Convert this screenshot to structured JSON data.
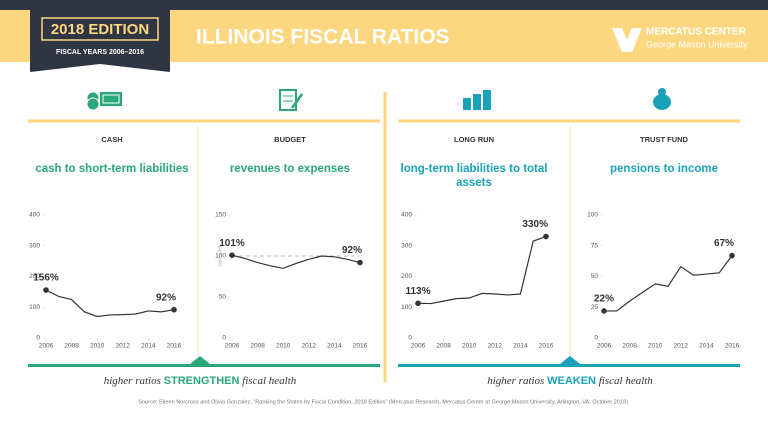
{
  "header": {
    "edition": "2018 EDITION",
    "years": "FISCAL YEARS 2006–2016",
    "title": "ILLINOIS FISCAL RATIOS",
    "logo_name": "MERCATUS CENTER",
    "logo_sub": "George Mason University"
  },
  "chart_data": [
    {
      "type": "line",
      "label": "CASH",
      "title": "cash to short-term liabilities",
      "title_color": "#2aa87a",
      "color": "#333333",
      "x": [
        2006,
        2007,
        2008,
        2009,
        2010,
        2011,
        2012,
        2013,
        2014,
        2015,
        2016
      ],
      "values": [
        156,
        135,
        125,
        85,
        70,
        75,
        76,
        78,
        88,
        85,
        92
      ],
      "value_labels": [
        "156%",
        null,
        null,
        null,
        null,
        null,
        null,
        null,
        null,
        null,
        "92%"
      ],
      "xlim": [
        2006,
        2016
      ],
      "xticks": [
        2006,
        2008,
        2010,
        2012,
        2014,
        2016
      ],
      "ylim": [
        0,
        400
      ],
      "yticks": [
        0,
        100,
        200,
        300,
        400
      ]
    },
    {
      "type": "line",
      "label": "BUDGET",
      "title": "revenues to expenses",
      "title_color": "#2aa87a",
      "color": "#333333",
      "x": [
        2006,
        2007,
        2008,
        2009,
        2010,
        2011,
        2012,
        2013,
        2014,
        2015,
        2016
      ],
      "values": [
        101,
        97,
        92,
        88,
        85,
        91,
        96,
        100,
        99,
        96,
        92
      ],
      "value_labels": [
        "101%",
        null,
        null,
        null,
        null,
        null,
        null,
        null,
        null,
        null,
        "92%"
      ],
      "reference": {
        "value": 100,
        "label": "balanced"
      },
      "xlim": [
        2006,
        2016
      ],
      "xticks": [
        2006,
        2008,
        2010,
        2012,
        2014,
        2016
      ],
      "ylim": [
        0,
        150
      ],
      "yticks": [
        0,
        50,
        100,
        150
      ]
    },
    {
      "type": "line",
      "label": "LONG RUN",
      "title": "long-term liabilities to total assets",
      "title_color": "#1aa3b8",
      "color": "#333333",
      "x": [
        2006,
        2007,
        2008,
        2009,
        2010,
        2011,
        2012,
        2013,
        2014,
        2015,
        2016
      ],
      "values": [
        113,
        112,
        120,
        128,
        130,
        145,
        143,
        140,
        143,
        315,
        330
      ],
      "value_labels": [
        "113%",
        null,
        null,
        null,
        null,
        null,
        null,
        null,
        null,
        null,
        "330%"
      ],
      "xlim": [
        2006,
        2016
      ],
      "xticks": [
        2006,
        2008,
        2010,
        2012,
        2014,
        2016
      ],
      "ylim": [
        0,
        400
      ],
      "yticks": [
        0,
        100,
        200,
        300,
        400
      ]
    },
    {
      "type": "line",
      "label": "TRUST FUND",
      "title": "pensions to income",
      "title_color": "#1aa3b8",
      "color": "#333333",
      "x": [
        2006,
        2007,
        2008,
        2009,
        2010,
        2011,
        2012,
        2013,
        2014,
        2015,
        2016
      ],
      "values": [
        22,
        22,
        30,
        37,
        44,
        42,
        58,
        51,
        52,
        53,
        67
      ],
      "value_labels": [
        "22%",
        null,
        null,
        null,
        null,
        null,
        null,
        null,
        null,
        null,
        "67%"
      ],
      "xlim": [
        2006,
        2016
      ],
      "xticks": [
        2006,
        2008,
        2010,
        2012,
        2014,
        2016
      ],
      "ylim": [
        0,
        100
      ],
      "yticks": [
        0,
        25,
        50,
        75,
        100
      ]
    }
  ],
  "footer": {
    "left": {
      "before": "higher ratios ",
      "emphasis": "STRENGTHEN",
      "after": " fiscal health",
      "color": "#2aa87a"
    },
    "right": {
      "before": "higher ratios ",
      "emphasis": "WEAKEN",
      "after": " fiscal health",
      "color": "#1aa3b8"
    },
    "source": "Source: Eileen Norcross and Olivia Gonzalez, “Ranking the States by Fiscal Condition, 2018 Edition” (Mercatus Research, Mercatus Center at George Mason University, Arlington, VA, October 2018)."
  }
}
